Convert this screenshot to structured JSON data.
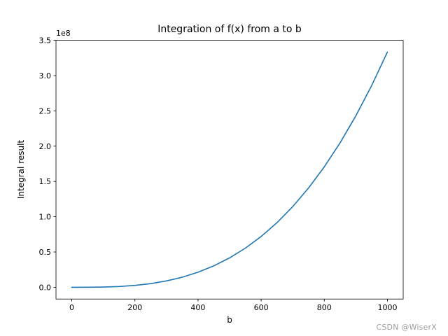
{
  "watermark": "CSDN @WiserX",
  "chart_data": {
    "type": "line",
    "title": "Integration of f(x) from a to b",
    "xlabel": "b",
    "ylabel": "Integral result",
    "offset_text": "1e8",
    "line_color": "#1f77b4",
    "axis_color": "#000000",
    "background_color": "#ffffff",
    "legend": "off",
    "grid": "off",
    "xlim": [
      -50,
      1050
    ],
    "ylim": [
      -16666667,
      350000000
    ],
    "xticks": [
      {
        "v": 0,
        "label": "0"
      },
      {
        "v": 200,
        "label": "200"
      },
      {
        "v": 400,
        "label": "400"
      },
      {
        "v": 600,
        "label": "600"
      },
      {
        "v": 800,
        "label": "800"
      },
      {
        "v": 1000,
        "label": "1000"
      }
    ],
    "yticks": [
      {
        "v": 0,
        "label": "0.0"
      },
      {
        "v": 50000000,
        "label": "0.5"
      },
      {
        "v": 100000000,
        "label": "1.0"
      },
      {
        "v": 150000000,
        "label": "1.5"
      },
      {
        "v": 200000000,
        "label": "2.0"
      },
      {
        "v": 250000000,
        "label": "2.5"
      },
      {
        "v": 300000000,
        "label": "3.0"
      },
      {
        "v": 350000000,
        "label": "3.5"
      }
    ],
    "x": [
      0,
      50,
      100,
      150,
      200,
      250,
      300,
      350,
      400,
      450,
      500,
      550,
      600,
      650,
      700,
      750,
      800,
      850,
      900,
      950,
      1000
    ],
    "y": [
      0,
      41667,
      333333,
      1125000,
      2666667,
      5208333,
      9000000,
      14291667,
      21333333,
      30375000,
      41666667,
      55458333,
      72000000,
      91541667,
      114333333,
      140625000,
      170666667,
      204708333,
      243000000,
      285791667,
      333333333
    ]
  }
}
